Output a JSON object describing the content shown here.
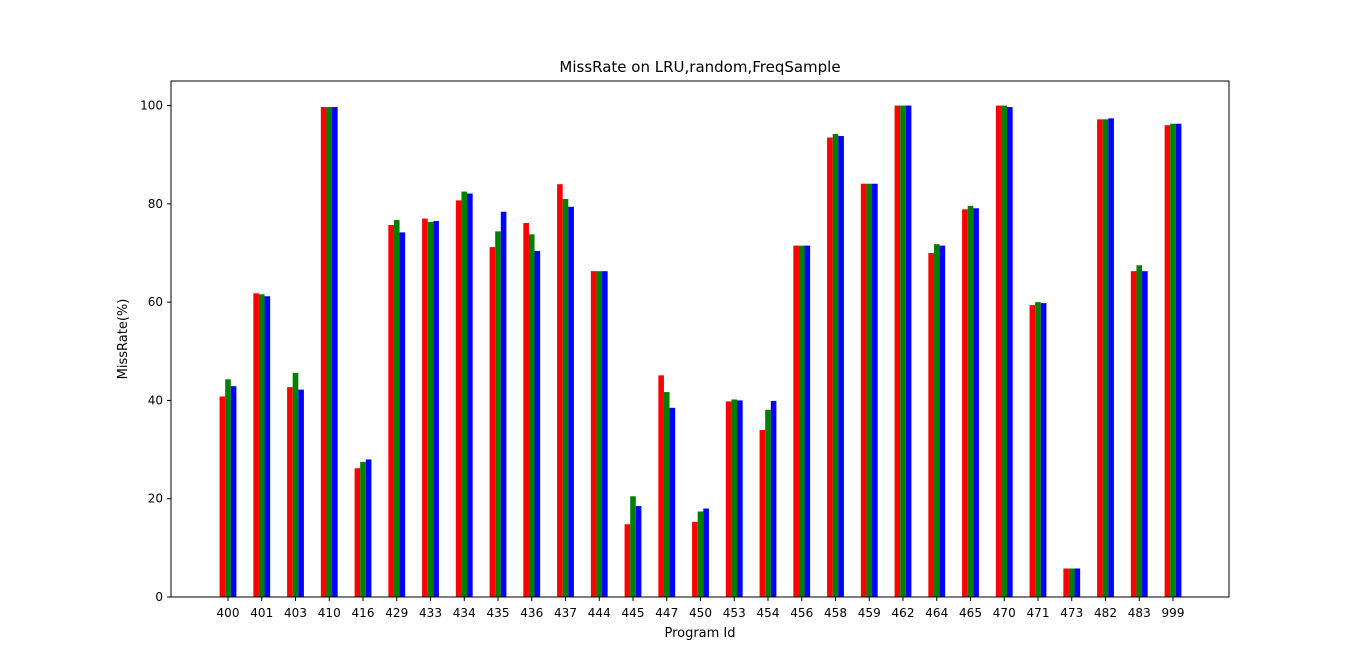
{
  "chart_data": {
    "type": "bar",
    "title": "MissRate on LRU,random,FreqSample",
    "xlabel": "Program Id",
    "ylabel": "MissRate(%)",
    "ylim": [
      0,
      105
    ],
    "yticks": [
      0,
      20,
      40,
      60,
      80,
      100
    ],
    "grid": false,
    "categories": [
      "400",
      "401",
      "403",
      "410",
      "416",
      "429",
      "433",
      "434",
      "435",
      "436",
      "437",
      "444",
      "445",
      "447",
      "450",
      "453",
      "454",
      "456",
      "458",
      "459",
      "462",
      "464",
      "465",
      "470",
      "471",
      "473",
      "482",
      "483",
      "999"
    ],
    "series": [
      {
        "color": "#ff0000",
        "values": [
          40.8,
          61.8,
          42.7,
          99.7,
          26.2,
          75.7,
          77.0,
          80.7,
          71.2,
          76.1,
          84.0,
          66.3,
          14.8,
          45.1,
          15.3,
          39.8,
          34.0,
          71.5,
          93.5,
          84.1,
          100.0,
          70.0,
          78.9,
          100.0,
          59.4,
          5.8,
          97.2,
          66.3,
          96.0
        ]
      },
      {
        "color": "#008000",
        "values": [
          44.3,
          61.6,
          45.6,
          99.7,
          27.5,
          76.7,
          76.3,
          82.5,
          74.4,
          73.8,
          81.0,
          66.3,
          20.5,
          41.7,
          17.4,
          40.2,
          38.1,
          71.5,
          94.2,
          84.1,
          100.0,
          71.8,
          79.6,
          100.0,
          60.0,
          5.8,
          97.2,
          67.5,
          96.3
        ]
      },
      {
        "color": "#0000ff",
        "values": [
          42.9,
          61.2,
          42.2,
          99.7,
          28.0,
          74.2,
          76.5,
          82.1,
          78.4,
          70.4,
          79.4,
          66.3,
          18.5,
          38.5,
          18.0,
          40.0,
          39.9,
          71.5,
          93.8,
          84.1,
          100.0,
          71.5,
          79.1,
          99.7,
          59.8,
          5.8,
          97.4,
          66.3,
          96.3
        ]
      }
    ]
  }
}
